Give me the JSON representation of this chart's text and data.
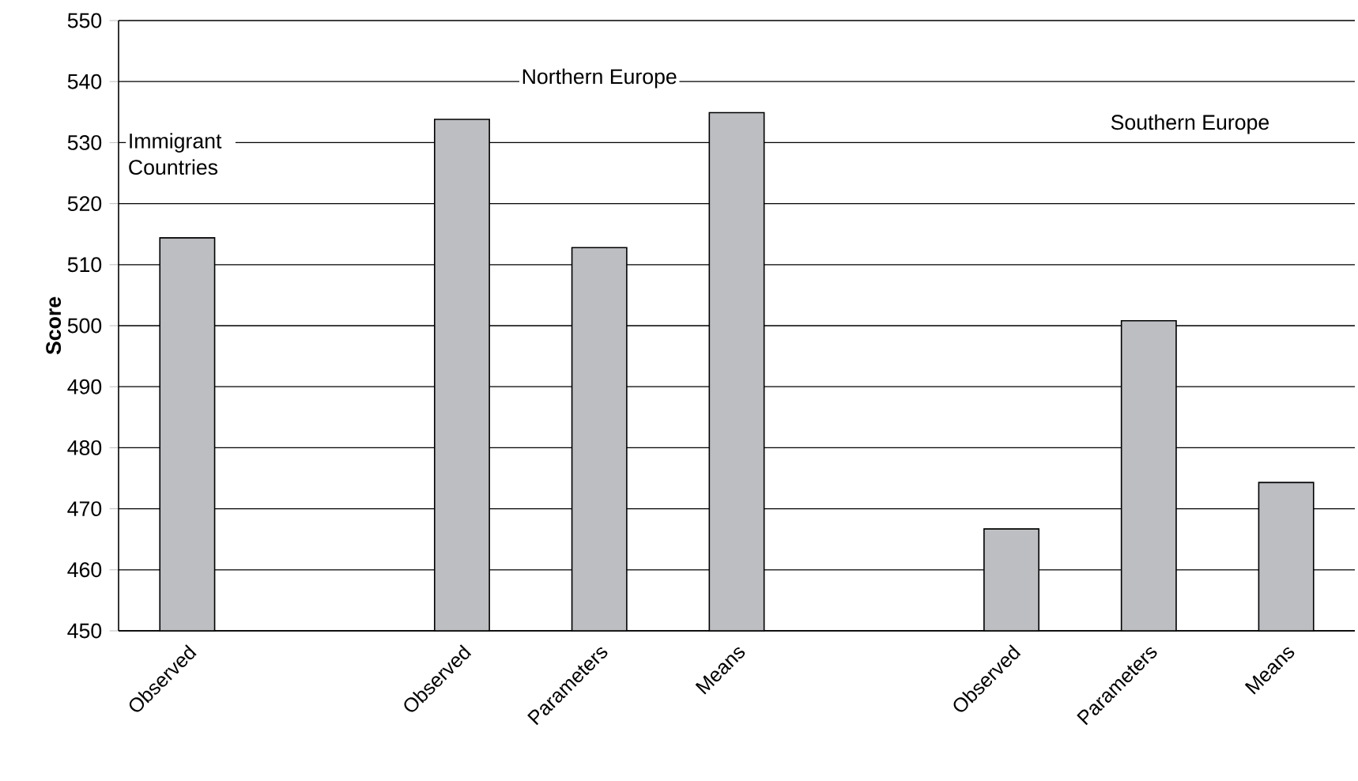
{
  "chart_data": {
    "type": "bar",
    "ylabel": "Score",
    "categories": [
      "Observed",
      null,
      "Observed",
      "Parameters",
      "Means",
      null,
      "Observed",
      "Parameters",
      "Means"
    ],
    "values": [
      514.4,
      null,
      533.8,
      512.8,
      534.9,
      null,
      466.7,
      500.8,
      474.3
    ],
    "color": "#bdbec2",
    "ylim": [
      450,
      550
    ],
    "yticks": [
      450,
      460,
      470,
      480,
      490,
      500,
      510,
      520,
      530,
      540,
      550
    ],
    "grid": "y",
    "annotations": [
      "Immigrant Countries",
      "Northern Europe",
      "Southern Europe"
    ]
  }
}
